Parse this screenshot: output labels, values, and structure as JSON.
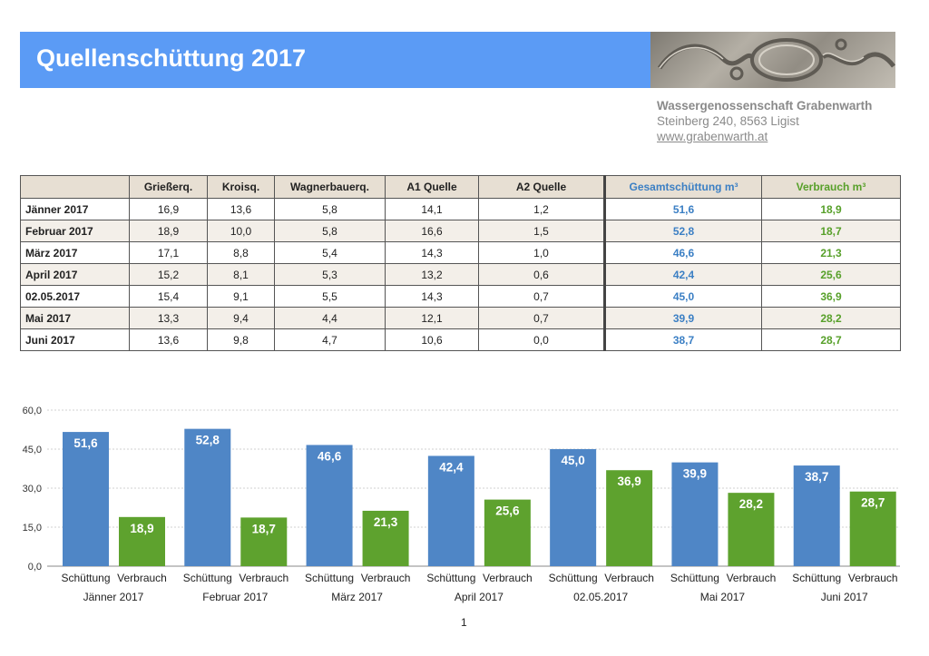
{
  "header": {
    "title": "Quellenschüttung 2017"
  },
  "organization": {
    "name": "Wassergenossenschaft Grabenwarth",
    "address": "Steinberg 240, 8563 Ligist",
    "website": "www.grabenwarth.at"
  },
  "table": {
    "columns": [
      "",
      "Grießerq.",
      "Kroisq.",
      "Wagnerbauerq.",
      "A1 Quelle",
      "A2 Quelle",
      "Gesamtschüttung m³",
      "Verbrauch m³"
    ],
    "rows": [
      [
        "Jänner 2017",
        "16,9",
        "13,6",
        "5,8",
        "14,1",
        "1,2",
        "51,6",
        "18,9"
      ],
      [
        "Februar 2017",
        "18,9",
        "10,0",
        "5,8",
        "16,6",
        "1,5",
        "52,8",
        "18,7"
      ],
      [
        "März 2017",
        "17,1",
        "8,8",
        "5,4",
        "14,3",
        "1,0",
        "46,6",
        "21,3"
      ],
      [
        "April 2017",
        "15,2",
        "8,1",
        "5,3",
        "13,2",
        "0,6",
        "42,4",
        "25,6"
      ],
      [
        "02.05.2017",
        "15,4",
        "9,1",
        "5,5",
        "14,3",
        "0,7",
        "45,0",
        "36,9"
      ],
      [
        "Mai 2017",
        "13,3",
        "9,4",
        "4,4",
        "12,1",
        "0,7",
        "39,9",
        "28,2"
      ],
      [
        "Juni 2017",
        "13,6",
        "9,8",
        "4,7",
        "10,6",
        "0,0",
        "38,7",
        "28,7"
      ]
    ]
  },
  "chart_data": {
    "type": "bar",
    "categories": [
      "Jänner 2017",
      "Februar 2017",
      "März 2017",
      "April 2017",
      "02.05.2017",
      "Mai 2017",
      "Juni 2017"
    ],
    "series": [
      {
        "name": "Schüttung",
        "values": [
          51.6,
          52.8,
          46.6,
          42.4,
          45.0,
          39.9,
          38.7
        ],
        "color": "#4f86c6"
      },
      {
        "name": "Verbrauch",
        "values": [
          18.9,
          18.7,
          21.3,
          25.6,
          36.9,
          28.2,
          28.7
        ],
        "color": "#5ea22e"
      }
    ],
    "yticks": [
      "0,0",
      "15,0",
      "30,0",
      "45,0",
      "60,0"
    ],
    "ylim": [
      0,
      60
    ],
    "grid": true,
    "legend": "none",
    "data_labels": true
  },
  "page": {
    "number": "1"
  }
}
